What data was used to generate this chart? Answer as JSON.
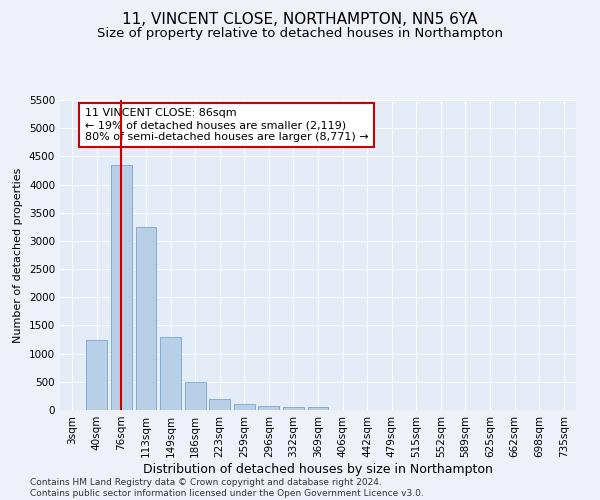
{
  "title": "11, VINCENT CLOSE, NORTHAMPTON, NN5 6YA",
  "subtitle": "Size of property relative to detached houses in Northampton",
  "xlabel": "Distribution of detached houses by size in Northampton",
  "ylabel": "Number of detached properties",
  "categories": [
    "3sqm",
    "40sqm",
    "76sqm",
    "113sqm",
    "149sqm",
    "186sqm",
    "223sqm",
    "259sqm",
    "296sqm",
    "332sqm",
    "369sqm",
    "406sqm",
    "442sqm",
    "479sqm",
    "515sqm",
    "552sqm",
    "589sqm",
    "625sqm",
    "662sqm",
    "698sqm",
    "735sqm"
  ],
  "values": [
    0,
    1250,
    4350,
    3250,
    1300,
    500,
    200,
    100,
    75,
    50,
    50,
    0,
    0,
    0,
    0,
    0,
    0,
    0,
    0,
    0,
    0
  ],
  "bar_color": "#b8cfe8",
  "bar_edge_color": "#6699cc",
  "highlight_color": "#cc0000",
  "highlight_index": 2,
  "annotation_text": "11 VINCENT CLOSE: 86sqm\n← 19% of detached houses are smaller (2,119)\n80% of semi-detached houses are larger (8,771) →",
  "annotation_box_color": "#ffffff",
  "annotation_box_edge": "#cc0000",
  "ylim": [
    0,
    5500
  ],
  "yticks": [
    0,
    500,
    1000,
    1500,
    2000,
    2500,
    3000,
    3500,
    4000,
    4500,
    5000,
    5500
  ],
  "footer": "Contains HM Land Registry data © Crown copyright and database right 2024.\nContains public sector information licensed under the Open Government Licence v3.0.",
  "title_fontsize": 11,
  "subtitle_fontsize": 9.5,
  "xlabel_fontsize": 9,
  "ylabel_fontsize": 8,
  "tick_fontsize": 7.5,
  "annotation_fontsize": 8,
  "footer_fontsize": 6.5,
  "background_color": "#eef2f8",
  "plot_bg_color": "#e4ecf7"
}
